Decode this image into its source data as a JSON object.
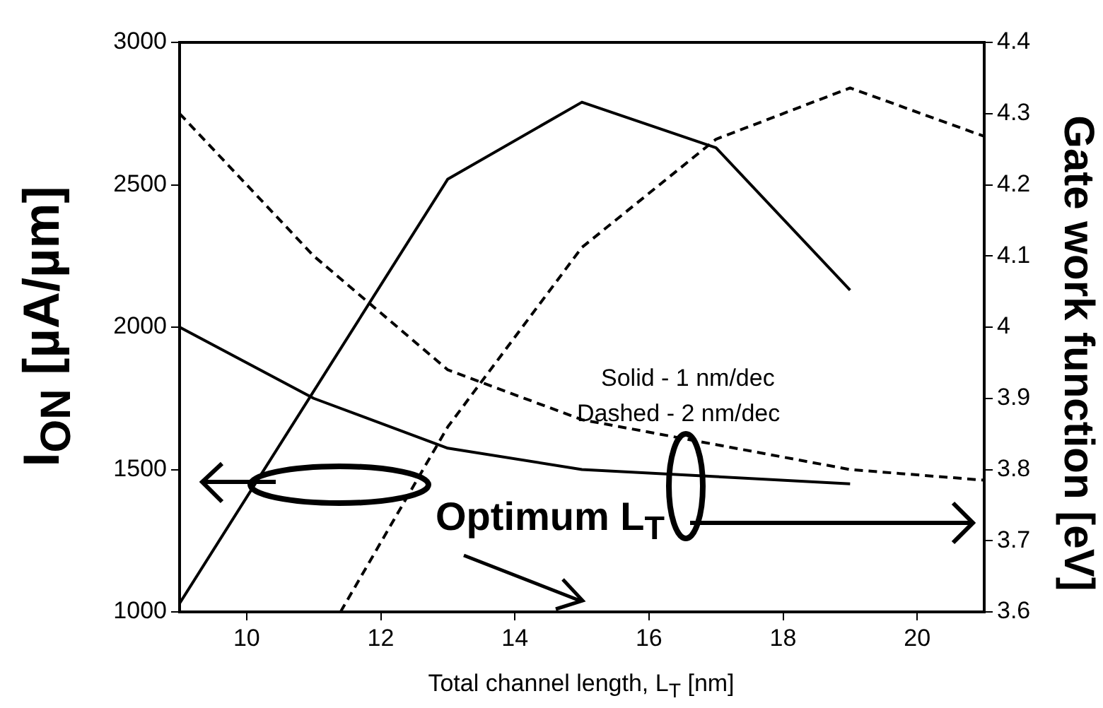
{
  "chart_data": {
    "type": "line",
    "xlabel": "Total channel length, L$_{T}$ [nm]",
    "ylabel": "I$_{ON}$ [µA/µm]",
    "y2label": "Gate work function [eV]",
    "xlim": [
      9,
      21
    ],
    "xticks": [
      10,
      12,
      14,
      16,
      18,
      20
    ],
    "ylim": [
      1000,
      3000
    ],
    "yticks": [
      1000,
      1500,
      2000,
      2500,
      3000
    ],
    "y2lim": [
      3.6,
      4.4
    ],
    "y2ticks": [
      3.6,
      3.7,
      3.8,
      3.9,
      4,
      4.1,
      4.2,
      4.3,
      4.4
    ],
    "grid": false,
    "legend": false,
    "marker": "none",
    "series": [
      {
        "color": "#000000",
        "line_style": "solid",
        "axis": "y",
        "x": [
          9,
          13,
          15,
          17,
          19
        ],
        "values": [
          1030,
          2520,
          2790,
          2630,
          2130
        ]
      },
      {
        "color": "#000000",
        "line_style": "dashed",
        "axis": "y",
        "x": [
          11.4,
          13,
          15,
          17,
          19,
          21
        ],
        "values": [
          1000,
          1650,
          2280,
          2660,
          2840,
          2670
        ]
      },
      {
        "color": "#000000",
        "line_style": "solid",
        "axis": "y2",
        "x": [
          9,
          11,
          13,
          15,
          17,
          19
        ],
        "values": [
          4.0,
          3.9,
          3.83,
          3.8,
          3.79,
          3.78
        ]
      },
      {
        "color": "#000000",
        "line_style": "dashed",
        "axis": "y2",
        "x": [
          9,
          11,
          13,
          15,
          17,
          19,
          21
        ],
        "values": [
          4.3,
          4.1,
          3.94,
          3.87,
          3.835,
          3.8,
          3.785
        ]
      }
    ],
    "annotations": [
      "Solid - 1 nm/dec",
      "Dashed - 2 nm/dec",
      "Optimum L$_{T}$"
    ]
  }
}
